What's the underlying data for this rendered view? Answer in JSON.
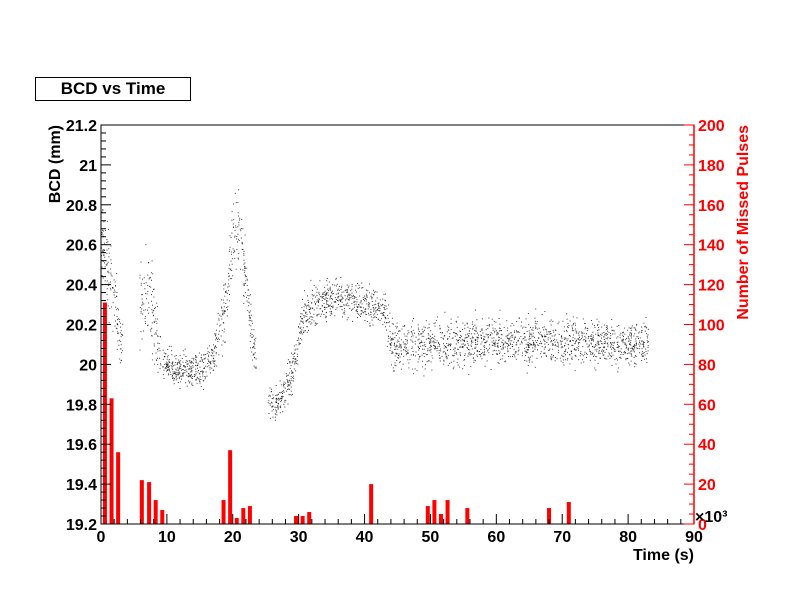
{
  "chart_data": {
    "type": "scatter",
    "title": "BCD vs Time",
    "xlabel": "Time (s)",
    "ylabel": "BCD (mm)",
    "y2label": "Number of Missed Pulses",
    "y2_multiplier": "×10³",
    "xlim": [
      0,
      90
    ],
    "ylim": [
      19.2,
      21.2
    ],
    "y2lim": [
      0,
      200
    ],
    "x_ticks": [
      "0",
      "10",
      "20",
      "30",
      "40",
      "50",
      "60",
      "70",
      "80",
      "90"
    ],
    "y_ticks": [
      "19.2",
      "19.4",
      "19.6",
      "19.8",
      "20",
      "20.2",
      "20.4",
      "20.6",
      "20.8",
      "21",
      "21.2"
    ],
    "y2_ticks": [
      "0",
      "20",
      "40",
      "60",
      "80",
      "100",
      "120",
      "140",
      "160",
      "180",
      "200"
    ],
    "scatter_profile": [
      {
        "x": 0.5,
        "y": 20.6,
        "spread": 0.25
      },
      {
        "x": 1.5,
        "y": 20.4,
        "spread": 0.3
      },
      {
        "x": 3,
        "y": 20.1,
        "spread": 0.15
      },
      {
        "x": 6,
        "y": 20.3,
        "spread": 0.25
      },
      {
        "x": 7.5,
        "y": 20.35,
        "spread": 0.3
      },
      {
        "x": 8.5,
        "y": 20.1,
        "spread": 0.2
      },
      {
        "x": 9.5,
        "y": 20.0,
        "spread": 0.1
      },
      {
        "x": 12,
        "y": 19.97,
        "spread": 0.1
      },
      {
        "x": 15,
        "y": 19.97,
        "spread": 0.1
      },
      {
        "x": 17,
        "y": 20.05,
        "spread": 0.12
      },
      {
        "x": 19,
        "y": 20.3,
        "spread": 0.2
      },
      {
        "x": 20,
        "y": 20.7,
        "spread": 0.25
      },
      {
        "x": 21,
        "y": 20.7,
        "spread": 0.25
      },
      {
        "x": 22,
        "y": 20.4,
        "spread": 0.2
      },
      {
        "x": 23,
        "y": 20.1,
        "spread": 0.15
      },
      {
        "x": 25.5,
        "y": 19.8,
        "spread": 0.1
      },
      {
        "x": 27,
        "y": 19.82,
        "spread": 0.12
      },
      {
        "x": 29,
        "y": 19.95,
        "spread": 0.12
      },
      {
        "x": 30.5,
        "y": 20.25,
        "spread": 0.15
      },
      {
        "x": 33,
        "y": 20.3,
        "spread": 0.12
      },
      {
        "x": 36,
        "y": 20.35,
        "spread": 0.12
      },
      {
        "x": 40,
        "y": 20.3,
        "spread": 0.12
      },
      {
        "x": 43,
        "y": 20.28,
        "spread": 0.12
      },
      {
        "x": 44,
        "y": 20.1,
        "spread": 0.15
      },
      {
        "x": 50,
        "y": 20.1,
        "spread": 0.15
      },
      {
        "x": 60,
        "y": 20.12,
        "spread": 0.14
      },
      {
        "x": 70,
        "y": 20.12,
        "spread": 0.14
      },
      {
        "x": 83,
        "y": 20.1,
        "spread": 0.14
      }
    ],
    "scatter_gaps": [
      [
        3.3,
        5.8
      ],
      [
        9.0,
        9.3
      ],
      [
        23.5,
        25.3
      ]
    ],
    "scatter_xrange": [
      0,
      83
    ],
    "bars_y2": [
      {
        "x": 0.6,
        "value": 111
      },
      {
        "x": 1.6,
        "value": 63
      },
      {
        "x": 2.6,
        "value": 36
      },
      {
        "x": 6.2,
        "value": 22
      },
      {
        "x": 7.3,
        "value": 21
      },
      {
        "x": 8.3,
        "value": 12
      },
      {
        "x": 9.3,
        "value": 7
      },
      {
        "x": 18.6,
        "value": 12
      },
      {
        "x": 19.6,
        "value": 37
      },
      {
        "x": 20.6,
        "value": 3
      },
      {
        "x": 21.6,
        "value": 8
      },
      {
        "x": 22.6,
        "value": 9
      },
      {
        "x": 29.6,
        "value": 4
      },
      {
        "x": 30.6,
        "value": 4
      },
      {
        "x": 31.6,
        "value": 6
      },
      {
        "x": 41.0,
        "value": 20
      },
      {
        "x": 49.6,
        "value": 9
      },
      {
        "x": 50.6,
        "value": 12
      },
      {
        "x": 51.6,
        "value": 5
      },
      {
        "x": 52.6,
        "value": 12
      },
      {
        "x": 55.6,
        "value": 8
      },
      {
        "x": 68.0,
        "value": 8
      },
      {
        "x": 71.0,
        "value": 11
      }
    ],
    "colors": {
      "scatter": "#000000",
      "bars": "#ff0000",
      "right_axis": "#ff0000"
    }
  }
}
